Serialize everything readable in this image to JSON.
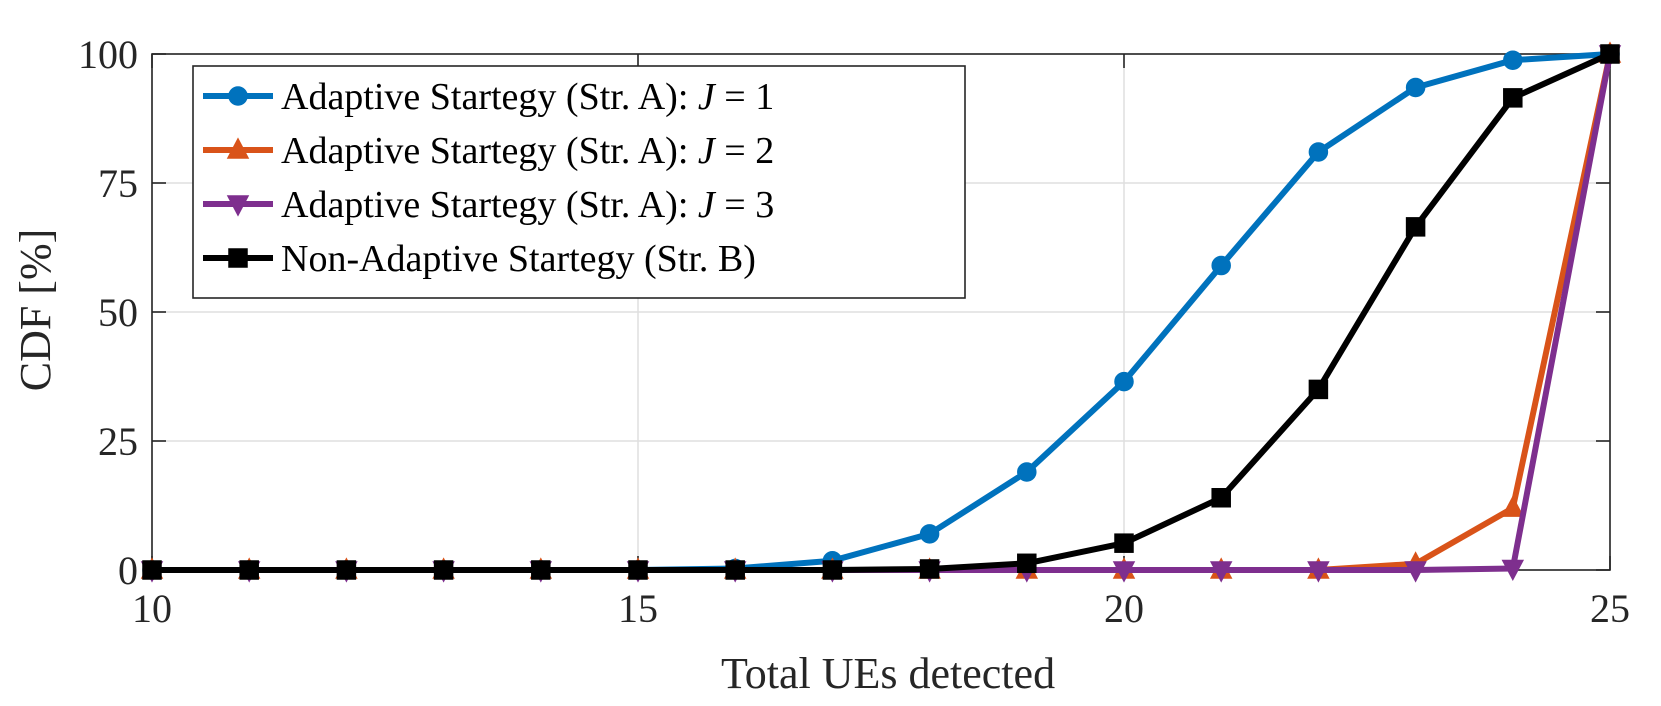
{
  "chart_data": {
    "type": "line",
    "title": "",
    "xlabel": "Total UEs detected",
    "ylabel": "CDF [%]",
    "xlim": [
      10,
      25
    ],
    "ylim": [
      0,
      100
    ],
    "xticks": [
      10,
      15,
      20,
      25
    ],
    "yticks": [
      0,
      25,
      50,
      75,
      100
    ],
    "grid": true,
    "legend_position": "top-left",
    "x": [
      10,
      11,
      12,
      13,
      14,
      15,
      16,
      17,
      18,
      19,
      20,
      21,
      22,
      23,
      24,
      25
    ],
    "series": [
      {
        "name": "Adaptive Startegy (Str. A): J = 1",
        "legend_prefix": "Adaptive Startegy (Str. A): ",
        "legend_var": "J",
        "legend_suffix": " = 1",
        "color": "#0072BD",
        "marker": "circle",
        "values": [
          0,
          0,
          0,
          0,
          0,
          0,
          0.3,
          1.8,
          7,
          19,
          36.5,
          59,
          81,
          93.5,
          98.8,
          100
        ]
      },
      {
        "name": "Adaptive Startegy (Str. A): J = 2",
        "legend_prefix": "Adaptive Startegy (Str. A): ",
        "legend_var": "J",
        "legend_suffix": " = 2",
        "color": "#D95319",
        "marker": "triangle-up",
        "values": [
          0,
          0,
          0,
          0,
          0,
          0,
          0,
          0,
          0,
          0,
          0,
          0,
          0,
          1.2,
          12,
          100
        ]
      },
      {
        "name": "Adaptive Startegy (Str. A): J = 3",
        "legend_prefix": "Adaptive Startegy (Str. A): ",
        "legend_var": "J",
        "legend_suffix": " = 3",
        "color": "#7E2F8E",
        "marker": "triangle-down",
        "values": [
          0,
          0,
          0,
          0,
          0,
          0,
          0,
          0,
          0,
          0,
          0,
          0,
          0,
          0,
          0.3,
          100
        ]
      },
      {
        "name": "Non-Adaptive Startegy (Str. B)",
        "legend_prefix": "Non-Adaptive Startegy (Str. B)",
        "legend_var": "",
        "legend_suffix": "",
        "color": "#000000",
        "marker": "square",
        "values": [
          0,
          0,
          0,
          0,
          0,
          0,
          0,
          0,
          0.2,
          1.3,
          5.2,
          14,
          35,
          66.5,
          91.5,
          100
        ]
      }
    ]
  }
}
